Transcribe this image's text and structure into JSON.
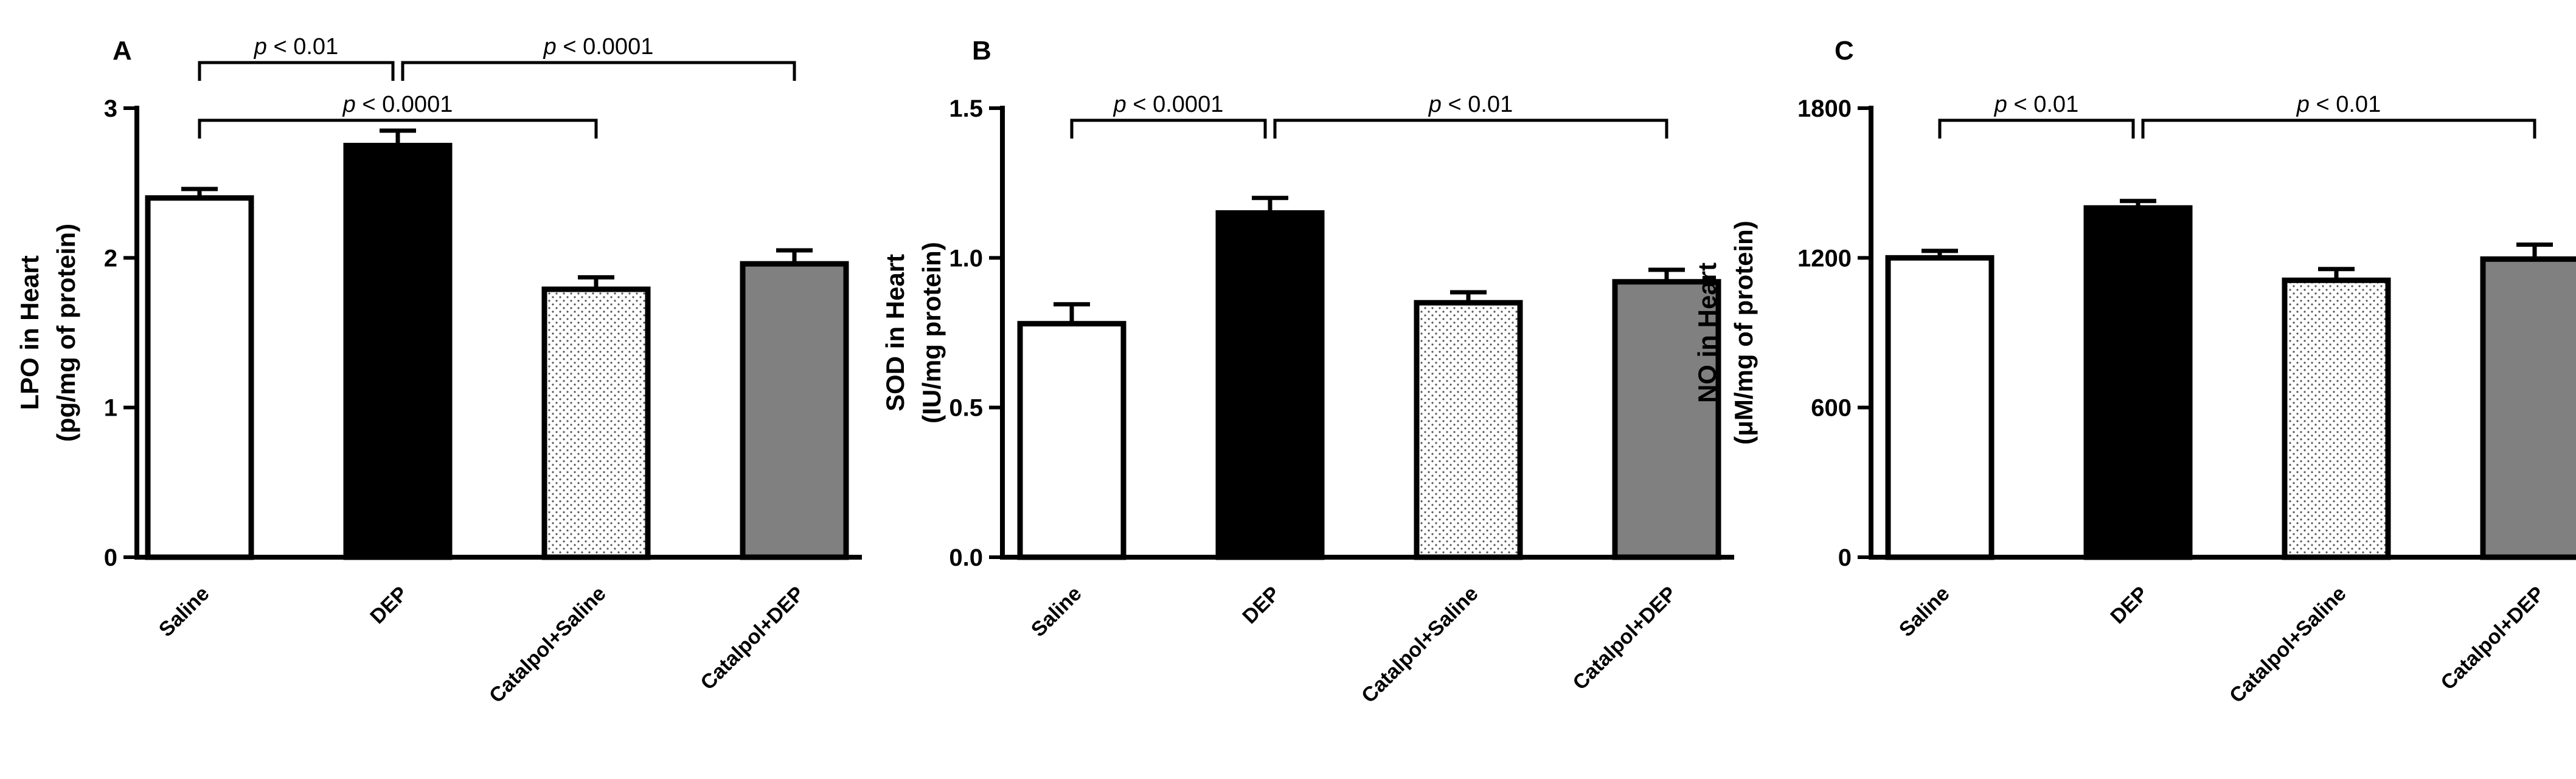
{
  "colors": {
    "saline": "#ffffff",
    "dep": "#000000",
    "catalpol_saline": "#f2f2f2",
    "catalpol_dep": "#808080",
    "axis": "#000000"
  },
  "chart_data": [
    {
      "type": "bar",
      "panel": "A",
      "ylabel_line1": "LPO in Heart",
      "ylabel_line2": "(pg/mg of protein)",
      "categories": [
        "Saline",
        "DEP",
        "Catalpol+Saline",
        "Catalpol+DEP"
      ],
      "values": [
        2.4,
        2.75,
        1.79,
        1.96
      ],
      "errors": [
        0.06,
        0.1,
        0.08,
        0.09
      ],
      "patterns": [
        "saline",
        "dep",
        "catalpol_saline",
        "catalpol_dep"
      ],
      "ylim": [
        0,
        3
      ],
      "yticks": [
        0,
        1,
        2,
        3
      ],
      "ytick_labels": [
        "0",
        "1",
        "2",
        "3"
      ],
      "comparisons": [
        {
          "from": 0,
          "to": 1,
          "label_p": "p",
          "label_rest": " < 0.01",
          "level": 2
        },
        {
          "from": 1,
          "to": 3,
          "label_p": "p",
          "label_rest": " < 0.0001",
          "level": 2
        },
        {
          "from": 0,
          "to": 2,
          "label_p": "p",
          "label_rest": " < 0.0001",
          "level": 1
        }
      ]
    },
    {
      "type": "bar",
      "panel": "B",
      "ylabel_line1": "SOD in Heart",
      "ylabel_line2": "(IU/mg protein)",
      "categories": [
        "Saline",
        "DEP",
        "Catalpol+Saline",
        "Catalpol+DEP"
      ],
      "values": [
        0.78,
        1.15,
        0.85,
        0.92
      ],
      "errors": [
        0.065,
        0.05,
        0.035,
        0.04
      ],
      "patterns": [
        "saline",
        "dep",
        "catalpol_saline",
        "catalpol_dep"
      ],
      "ylim": [
        0,
        1.5
      ],
      "yticks": [
        0,
        0.5,
        1,
        1.5
      ],
      "ytick_labels": [
        "0.0",
        "0.5",
        "1.0",
        "1.5"
      ],
      "comparisons": [
        {
          "from": 0,
          "to": 1,
          "label_p": "p",
          "label_rest": " < 0.0001",
          "level": 1
        },
        {
          "from": 1,
          "to": 3,
          "label_p": "p",
          "label_rest": " < 0.01",
          "level": 1
        }
      ]
    },
    {
      "type": "bar",
      "panel": "C",
      "ylabel_line1": "NO in Heart",
      "ylabel_line2": "(μM/mg of protein)",
      "categories": [
        "Saline",
        "DEP",
        "Catalpol+Saline",
        "Catalpol+DEP"
      ],
      "values": [
        1200,
        1400,
        1110,
        1195
      ],
      "errors": [
        28,
        28,
        45,
        58
      ],
      "patterns": [
        "saline",
        "dep",
        "catalpol_saline",
        "catalpol_dep"
      ],
      "ylim": [
        0,
        1800
      ],
      "yticks": [
        0,
        600,
        1200,
        1800
      ],
      "ytick_labels": [
        "0",
        "600",
        "1200",
        "1800"
      ],
      "comparisons": [
        {
          "from": 0,
          "to": 1,
          "label_p": "p",
          "label_rest": " < 0.01",
          "level": 1
        },
        {
          "from": 1,
          "to": 3,
          "label_p": "p",
          "label_rest": " < 0.01",
          "level": 1
        }
      ]
    }
  ]
}
